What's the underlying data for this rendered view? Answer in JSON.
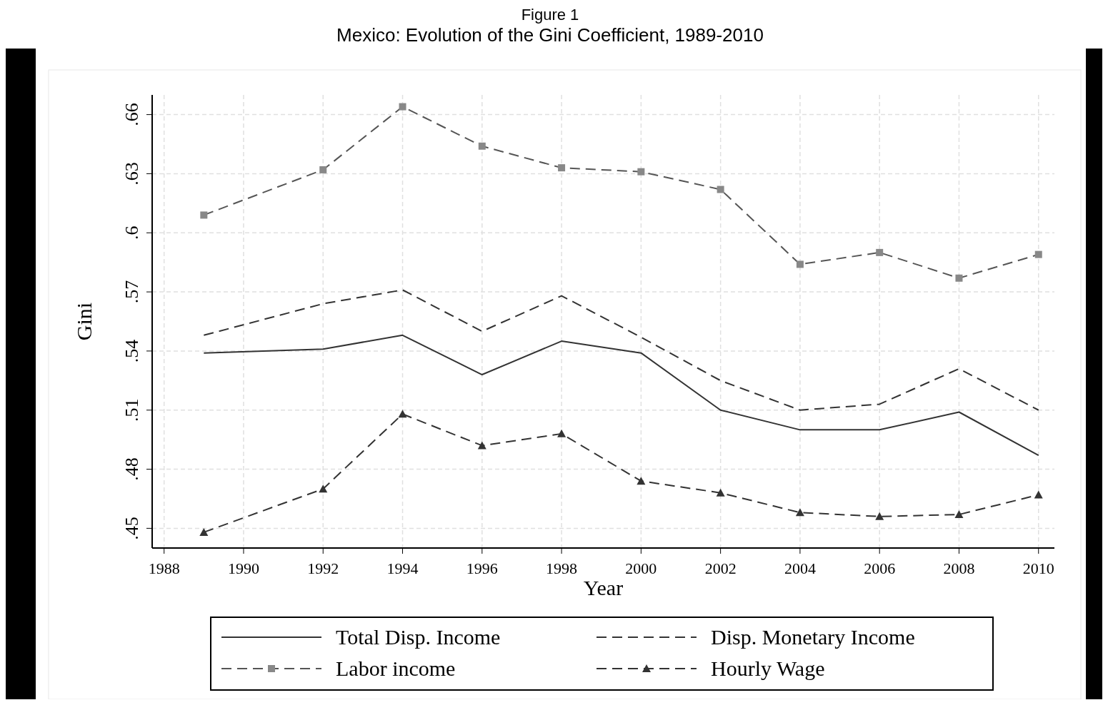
{
  "chart_data": {
    "type": "line",
    "title": "Mexico: Evolution of the Gini Coefficient, 1989-2010",
    "annotations": [
      "Figure 1"
    ],
    "xlabel": "Year",
    "ylabel": "Gini",
    "x": [
      1989,
      1992,
      1994,
      1996,
      1998,
      2000,
      2002,
      2004,
      2006,
      2008,
      2010
    ],
    "xlim": [
      1987.7,
      2010.4
    ],
    "xticks": [
      1988,
      1990,
      1992,
      1994,
      1996,
      1998,
      2000,
      2002,
      2004,
      2006,
      2008,
      2010
    ],
    "ylim": [
      0.44,
      0.67
    ],
    "yticks": [
      {
        "value": 0.45,
        "label": ".45"
      },
      {
        "value": 0.48,
        "label": ".48"
      },
      {
        "value": 0.51,
        "label": ".51"
      },
      {
        "value": 0.54,
        "label": ".54"
      },
      {
        "value": 0.57,
        "label": ".57"
      },
      {
        "value": 0.6,
        "label": ".6"
      },
      {
        "value": 0.63,
        "label": ".63"
      },
      {
        "value": 0.66,
        "label": ".66"
      }
    ],
    "grid": true,
    "legend": "bottom",
    "series": [
      {
        "name": "Total Disp. Income",
        "color": "#333333",
        "line_style": "solid",
        "marker": "none",
        "values": [
          0.539,
          0.541,
          0.548,
          0.528,
          0.545,
          0.539,
          0.51,
          0.5,
          0.5,
          0.509,
          0.487
        ]
      },
      {
        "name": "Disp. Monetary Income",
        "color": "#333333",
        "line_style": "dashed",
        "marker": "none",
        "values": [
          0.548,
          0.564,
          0.571,
          0.55,
          0.568,
          0.547,
          0.525,
          0.51,
          0.513,
          0.531,
          0.51
        ]
      },
      {
        "name": "Labor income",
        "color": "#555555",
        "line_style": "dashed",
        "marker": "square",
        "values": [
          0.609,
          0.632,
          0.664,
          0.644,
          0.633,
          0.631,
          0.622,
          0.584,
          0.59,
          0.577,
          0.589
        ]
      },
      {
        "name": "Hourly Wage",
        "color": "#333333",
        "line_style": "dashed",
        "marker": "triangle",
        "values": [
          0.448,
          0.47,
          0.508,
          0.492,
          0.498,
          0.474,
          0.468,
          0.458,
          0.456,
          0.457,
          0.467
        ]
      }
    ]
  }
}
